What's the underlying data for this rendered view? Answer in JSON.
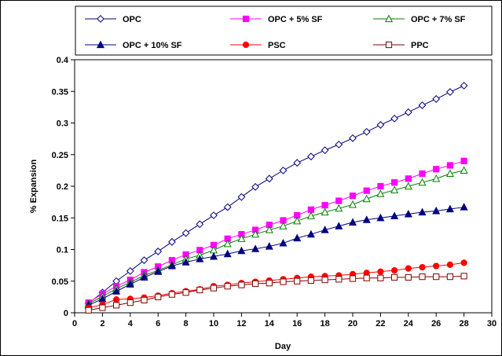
{
  "chart_data": {
    "type": "line",
    "title": "",
    "xlabel": "Day",
    "ylabel": "% Expansion",
    "xlim": [
      0,
      30
    ],
    "ylim": [
      0,
      0.4
    ],
    "xticks": [
      0,
      2,
      4,
      6,
      8,
      10,
      12,
      14,
      16,
      18,
      20,
      22,
      24,
      26,
      28,
      30
    ],
    "yticks": [
      0,
      0.05,
      0.1,
      0.15,
      0.2,
      0.25,
      0.3,
      0.35,
      0.4
    ],
    "ytick_labels": [
      "0",
      "0.05",
      "0.1",
      "0.15",
      "0.2",
      "0.25",
      "0.3",
      "0.35",
      "0.4"
    ],
    "grid": false,
    "legend_position": "top",
    "x": [
      1,
      2,
      3,
      4,
      5,
      6,
      7,
      8,
      9,
      10,
      11,
      12,
      13,
      14,
      15,
      16,
      17,
      18,
      19,
      20,
      21,
      22,
      23,
      24,
      25,
      26,
      27,
      28
    ],
    "series": [
      {
        "name": "OPC",
        "color": "#000080",
        "marker": "diamond-open",
        "values": [
          0.015,
          0.032,
          0.05,
          0.066,
          0.083,
          0.097,
          0.112,
          0.126,
          0.14,
          0.154,
          0.167,
          0.183,
          0.199,
          0.212,
          0.225,
          0.237,
          0.247,
          0.257,
          0.266,
          0.276,
          0.286,
          0.297,
          0.307,
          0.317,
          0.328,
          0.338,
          0.349,
          0.359
        ]
      },
      {
        "name": "OPC + 5% SF",
        "color": "#ff00ff",
        "marker": "square-filled",
        "values": [
          0.016,
          0.03,
          0.042,
          0.052,
          0.064,
          0.073,
          0.083,
          0.092,
          0.099,
          0.107,
          0.117,
          0.124,
          0.131,
          0.139,
          0.146,
          0.154,
          0.163,
          0.17,
          0.177,
          0.185,
          0.193,
          0.2,
          0.206,
          0.212,
          0.22,
          0.227,
          0.233,
          0.24
        ]
      },
      {
        "name": "OPC + 7% SF",
        "color": "#008000",
        "marker": "triangle-open",
        "values": [
          0.014,
          0.026,
          0.038,
          0.048,
          0.059,
          0.067,
          0.076,
          0.085,
          0.091,
          0.099,
          0.109,
          0.117,
          0.124,
          0.131,
          0.137,
          0.145,
          0.153,
          0.159,
          0.165,
          0.171,
          0.18,
          0.188,
          0.194,
          0.2,
          0.206,
          0.212,
          0.22,
          0.225
        ]
      },
      {
        "name": "OPC + 10% SF",
        "color": "#000080",
        "marker": "triangle-filled",
        "values": [
          0.012,
          0.022,
          0.034,
          0.045,
          0.056,
          0.065,
          0.074,
          0.08,
          0.085,
          0.089,
          0.093,
          0.098,
          0.101,
          0.105,
          0.11,
          0.118,
          0.124,
          0.131,
          0.137,
          0.143,
          0.147,
          0.15,
          0.153,
          0.156,
          0.159,
          0.161,
          0.164,
          0.167
        ]
      },
      {
        "name": "PSC",
        "color": "#ff0000",
        "marker": "circle-filled",
        "values": [
          0.008,
          0.013,
          0.021,
          0.022,
          0.024,
          0.027,
          0.031,
          0.034,
          0.037,
          0.042,
          0.044,
          0.047,
          0.049,
          0.051,
          0.053,
          0.055,
          0.057,
          0.058,
          0.059,
          0.061,
          0.063,
          0.065,
          0.067,
          0.07,
          0.072,
          0.074,
          0.076,
          0.079
        ]
      },
      {
        "name": "PPC",
        "color": "#800000",
        "marker": "square-open",
        "values": [
          0.004,
          0.008,
          0.012,
          0.016,
          0.02,
          0.025,
          0.029,
          0.032,
          0.036,
          0.039,
          0.042,
          0.044,
          0.046,
          0.047,
          0.049,
          0.05,
          0.051,
          0.052,
          0.053,
          0.054,
          0.055,
          0.055,
          0.056,
          0.056,
          0.057,
          0.057,
          0.057,
          0.058
        ]
      }
    ]
  }
}
